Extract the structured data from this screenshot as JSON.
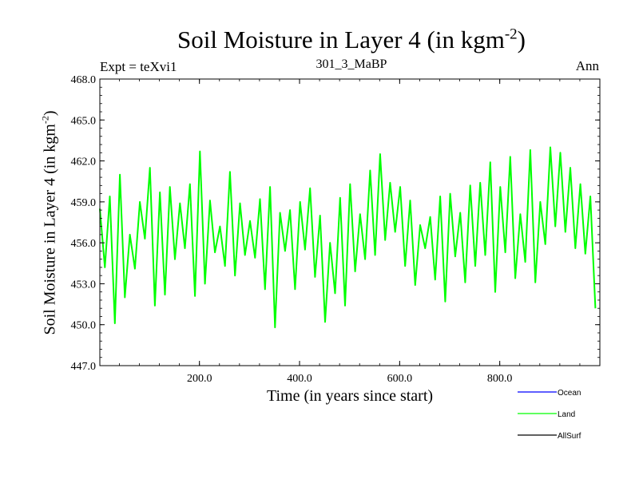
{
  "chart_data": {
    "type": "line",
    "title": "Soil Moisture in Layer 4 (in kgm",
    "title_superscript": "-2",
    "title_suffix": ")",
    "left_label": "Expt = teXvi1",
    "center_label": "301_3_MaBP",
    "right_label": "Ann",
    "xlabel": "Time (in years since start)",
    "ylabel": "Soil Moisture in Layer 4 (in kgm",
    "ylabel_superscript": "-2",
    "ylabel_suffix": ")",
    "xlim": [
      1,
      1000
    ],
    "ylim": [
      447.0,
      468.0
    ],
    "x_ticks": [
      200,
      400,
      600,
      800
    ],
    "x_tick_labels": [
      "200.0",
      "400.0",
      "600.0",
      "800.0"
    ],
    "y_ticks": [
      447.0,
      450.0,
      453.0,
      456.0,
      459.0,
      462.0,
      465.0,
      468.0
    ],
    "y_tick_labels": [
      "447.0",
      "450.0",
      "453.0",
      "456.0",
      "459.0",
      "462.0",
      "465.0",
      "468.0"
    ],
    "series": [
      {
        "name": "Land",
        "color": "#00ff00",
        "x_start": 1,
        "x_step": 10,
        "values": [
          458.5,
          454.2,
          459.4,
          450.1,
          461.0,
          452.0,
          456.6,
          454.1,
          459.0,
          456.3,
          461.5,
          451.4,
          459.7,
          452.2,
          460.1,
          454.8,
          458.9,
          455.6,
          460.3,
          452.1,
          462.7,
          453.0,
          459.1,
          455.3,
          457.2,
          454.3,
          461.2,
          453.6,
          458.9,
          455.1,
          457.6,
          454.9,
          459.2,
          452.6,
          460.1,
          449.8,
          458.2,
          455.4,
          458.4,
          452.6,
          459.0,
          455.5,
          460.0,
          453.5,
          458.0,
          450.2,
          456.0,
          452.3,
          459.3,
          451.4,
          460.3,
          453.9,
          458.1,
          454.8,
          461.3,
          455.1,
          462.5,
          456.2,
          460.4,
          456.8,
          460.1,
          454.3,
          459.1,
          452.9,
          457.3,
          455.6,
          457.9,
          453.3,
          459.4,
          451.7,
          459.6,
          455.0,
          458.2,
          453.1,
          460.2,
          454.3,
          460.4,
          455.1,
          461.9,
          452.4,
          460.1,
          455.3,
          462.3,
          453.4,
          458.1,
          454.6,
          462.8,
          453.1,
          459.0,
          455.9,
          463.0,
          457.2,
          462.6,
          456.8,
          461.5,
          455.6,
          460.3,
          455.2,
          459.4,
          451.2
        ]
      },
      {
        "name": "Ocean",
        "color": "#0000ff",
        "values": []
      },
      {
        "name": "AllSurf",
        "color": "#000000",
        "values": []
      }
    ],
    "legend": [
      {
        "label": "Ocean",
        "color": "#0000ff"
      },
      {
        "label": "Land",
        "color": "#00ff00"
      },
      {
        "label": "AllSurf",
        "color": "#000000"
      }
    ],
    "legend_position": "bottom-right",
    "grid": false
  }
}
